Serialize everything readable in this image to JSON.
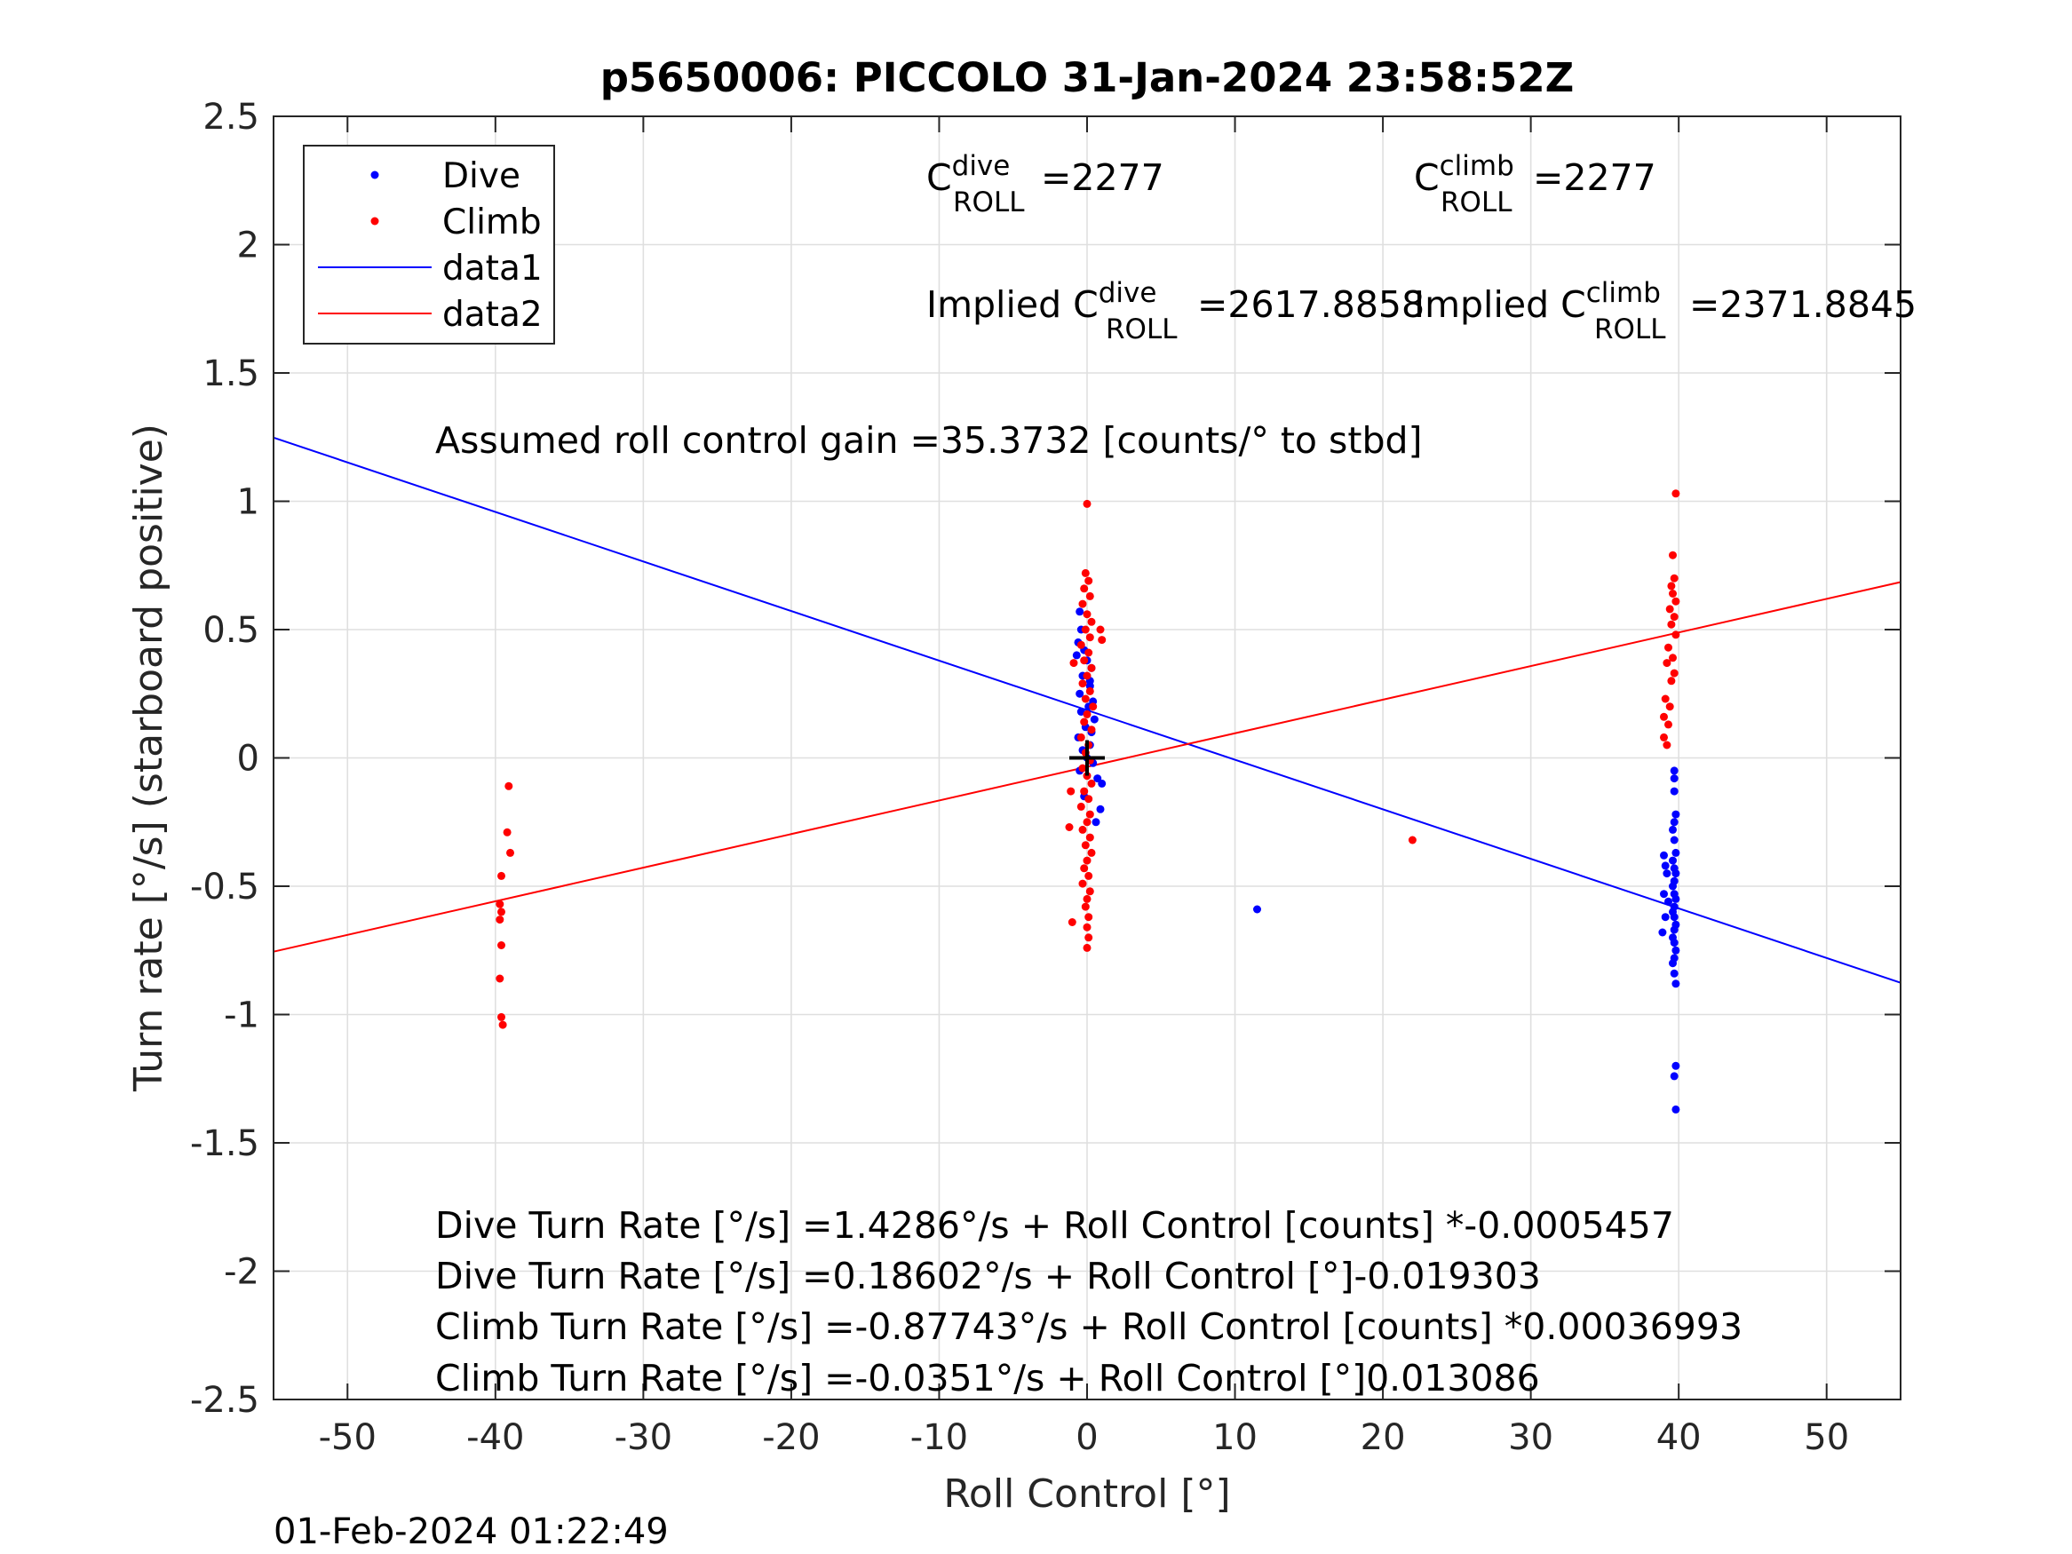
{
  "chart_data": {
    "type": "scatter",
    "title": "p5650006: PICCOLO 31-Jan-2024 23:58:52Z",
    "xlabel": "Roll Control [°]",
    "ylabel": "Turn rate [°/s] (starboard positive)",
    "xlim": [
      -55,
      55
    ],
    "ylim": [
      -2.5,
      2.5
    ],
    "xticks": [
      -50,
      -40,
      -30,
      -20,
      -10,
      0,
      10,
      20,
      30,
      40,
      50
    ],
    "yticks": [
      -2.5,
      -2,
      -1.5,
      -1,
      -0.5,
      0,
      0.5,
      1,
      1.5,
      2,
      2.5
    ],
    "xtick_labels": [
      "-50",
      "-40",
      "-30",
      "-20",
      "-10",
      "0",
      "10",
      "20",
      "30",
      "40",
      "50"
    ],
    "ytick_labels": [
      "-2.5",
      "-2",
      "-1.5",
      "-1",
      "-0.5",
      "0",
      "0.5",
      "1",
      "1.5",
      "2",
      "2.5"
    ],
    "grid": true,
    "legend_position": "top-left",
    "legend": [
      {
        "label": "Dive",
        "kind": "marker",
        "color": "#0000ff"
      },
      {
        "label": "Climb",
        "kind": "marker",
        "color": "#ff0000"
      },
      {
        "label": "data1",
        "kind": "line",
        "color": "#0000ff"
      },
      {
        "label": "data2",
        "kind": "line",
        "color": "#ff0000"
      }
    ],
    "series": [
      {
        "name": "Dive",
        "kind": "scatter",
        "color": "#0000ff",
        "points": [
          [
            -0.5,
            0.57
          ],
          [
            -0.4,
            0.5
          ],
          [
            -0.6,
            0.45
          ],
          [
            -0.2,
            0.42
          ],
          [
            0.0,
            0.38
          ],
          [
            0.3,
            0.35
          ],
          [
            -0.3,
            0.32
          ],
          [
            0.2,
            0.28
          ],
          [
            -0.5,
            0.25
          ],
          [
            0.4,
            0.22
          ],
          [
            0.1,
            0.2
          ],
          [
            -0.4,
            0.18
          ],
          [
            0.5,
            0.15
          ],
          [
            -0.1,
            0.12
          ],
          [
            0.3,
            0.1
          ],
          [
            -0.6,
            0.08
          ],
          [
            0.2,
            0.05
          ],
          [
            -0.3,
            0.03
          ],
          [
            0.0,
            0.0
          ],
          [
            0.4,
            -0.02
          ],
          [
            -0.5,
            -0.05
          ],
          [
            0.7,
            -0.08
          ],
          [
            1.0,
            -0.1
          ],
          [
            0.9,
            -0.2
          ],
          [
            0.6,
            -0.25
          ],
          [
            -0.2,
            -0.15
          ],
          [
            0.2,
            0.3
          ],
          [
            -0.7,
            0.4
          ],
          [
            11.5,
            -0.59
          ],
          [
            39.7,
            -0.05
          ],
          [
            39.7,
            -0.08
          ],
          [
            39.7,
            -0.13
          ],
          [
            39.8,
            -0.22
          ],
          [
            39.7,
            -0.25
          ],
          [
            39.6,
            -0.28
          ],
          [
            39.7,
            -0.32
          ],
          [
            39.8,
            -0.37
          ],
          [
            39.6,
            -0.4
          ],
          [
            39.7,
            -0.43
          ],
          [
            39.8,
            -0.45
          ],
          [
            39.7,
            -0.48
          ],
          [
            39.6,
            -0.5
          ],
          [
            39.7,
            -0.53
          ],
          [
            39.8,
            -0.55
          ],
          [
            39.7,
            -0.58
          ],
          [
            39.6,
            -0.6
          ],
          [
            39.7,
            -0.62
          ],
          [
            39.8,
            -0.65
          ],
          [
            39.7,
            -0.67
          ],
          [
            39.6,
            -0.7
          ],
          [
            39.7,
            -0.72
          ],
          [
            39.8,
            -0.75
          ],
          [
            39.7,
            -0.78
          ],
          [
            39.6,
            -0.8
          ],
          [
            39.7,
            -0.84
          ],
          [
            39.8,
            -0.88
          ],
          [
            39.0,
            -0.38
          ],
          [
            39.1,
            -0.42
          ],
          [
            39.2,
            -0.45
          ],
          [
            39.0,
            -0.53
          ],
          [
            39.3,
            -0.56
          ],
          [
            39.1,
            -0.62
          ],
          [
            38.9,
            -0.68
          ],
          [
            39.8,
            -1.2
          ],
          [
            39.7,
            -1.24
          ],
          [
            39.8,
            -1.37
          ]
        ]
      },
      {
        "name": "Climb",
        "kind": "scatter",
        "color": "#ff0000",
        "points": [
          [
            -39.1,
            -0.11
          ],
          [
            -39.2,
            -0.29
          ],
          [
            -39.0,
            -0.37
          ],
          [
            -39.6,
            -0.46
          ],
          [
            -39.7,
            -0.57
          ],
          [
            -39.6,
            -0.6
          ],
          [
            -39.7,
            -0.63
          ],
          [
            -39.6,
            -0.73
          ],
          [
            -39.7,
            -0.86
          ],
          [
            -39.6,
            -1.01
          ],
          [
            -39.5,
            -1.04
          ],
          [
            0.0,
            0.99
          ],
          [
            -0.1,
            0.72
          ],
          [
            0.1,
            0.69
          ],
          [
            -0.2,
            0.66
          ],
          [
            0.2,
            0.63
          ],
          [
            -0.3,
            0.6
          ],
          [
            0.0,
            0.56
          ],
          [
            0.3,
            0.53
          ],
          [
            -0.1,
            0.5
          ],
          [
            0.2,
            0.47
          ],
          [
            -0.4,
            0.44
          ],
          [
            0.1,
            0.41
          ],
          [
            -0.2,
            0.38
          ],
          [
            0.3,
            0.35
          ],
          [
            0.0,
            0.32
          ],
          [
            -0.3,
            0.29
          ],
          [
            0.2,
            0.26
          ],
          [
            -0.1,
            0.23
          ],
          [
            0.4,
            0.2
          ],
          [
            0.0,
            0.17
          ],
          [
            -0.2,
            0.14
          ],
          [
            0.3,
            0.11
          ],
          [
            -0.4,
            0.08
          ],
          [
            0.1,
            0.05
          ],
          [
            -0.1,
            0.02
          ],
          [
            0.2,
            -0.01
          ],
          [
            -0.3,
            -0.04
          ],
          [
            0.0,
            -0.07
          ],
          [
            0.3,
            -0.1
          ],
          [
            -0.2,
            -0.13
          ],
          [
            0.1,
            -0.16
          ],
          [
            -0.4,
            -0.19
          ],
          [
            0.2,
            -0.22
          ],
          [
            0.0,
            -0.25
          ],
          [
            -0.3,
            -0.28
          ],
          [
            0.2,
            -0.31
          ],
          [
            -0.1,
            -0.34
          ],
          [
            0.3,
            -0.37
          ],
          [
            0.0,
            -0.4
          ],
          [
            -0.2,
            -0.43
          ],
          [
            0.1,
            -0.46
          ],
          [
            -0.3,
            -0.49
          ],
          [
            0.2,
            -0.52
          ],
          [
            0.0,
            -0.55
          ],
          [
            -0.1,
            -0.58
          ],
          [
            0.1,
            -0.62
          ],
          [
            0.0,
            -0.66
          ],
          [
            0.1,
            -0.7
          ],
          [
            0.0,
            -0.74
          ],
          [
            -1.0,
            -0.64
          ],
          [
            -1.2,
            -0.27
          ],
          [
            -1.1,
            -0.13
          ],
          [
            1.0,
            0.46
          ],
          [
            0.9,
            0.5
          ],
          [
            -0.9,
            0.37
          ],
          [
            22.0,
            -0.32
          ],
          [
            39.8,
            1.03
          ],
          [
            39.6,
            0.79
          ],
          [
            39.7,
            0.7
          ],
          [
            39.5,
            0.67
          ],
          [
            39.6,
            0.64
          ],
          [
            39.8,
            0.61
          ],
          [
            39.4,
            0.58
          ],
          [
            39.7,
            0.55
          ],
          [
            39.5,
            0.52
          ],
          [
            39.8,
            0.48
          ],
          [
            39.3,
            0.43
          ],
          [
            39.6,
            0.39
          ],
          [
            39.2,
            0.37
          ],
          [
            39.7,
            0.33
          ],
          [
            39.5,
            0.3
          ],
          [
            39.1,
            0.23
          ],
          [
            39.4,
            0.2
          ],
          [
            39.0,
            0.16
          ],
          [
            39.3,
            0.13
          ],
          [
            39.0,
            0.08
          ],
          [
            39.2,
            0.05
          ]
        ]
      },
      {
        "name": "data1",
        "kind": "line",
        "color": "#0000ff",
        "points": [
          [
            -55,
            1.248
          ],
          [
            55,
            -0.876
          ]
        ]
      },
      {
        "name": "data2",
        "kind": "line",
        "color": "#ff0000",
        "points": [
          [
            -55,
            -0.755
          ],
          [
            55,
            0.685
          ]
        ]
      }
    ],
    "origin_marker": {
      "x": 0,
      "y": 0,
      "color": "#000000"
    }
  },
  "annotations": {
    "c_dive": {
      "base": "C",
      "sup": "dive",
      "sub": "ROLL",
      "value": "=2277"
    },
    "c_climb": {
      "base": "C",
      "sup": "climb",
      "sub": "ROLL",
      "value": "=2277"
    },
    "implied_dive": {
      "prefix": "Implied C",
      "sup": "dive",
      "sub": "ROLL",
      "value": "=2617.8858"
    },
    "implied_climb": {
      "prefix": "Implied C",
      "sup": "climb",
      "sub": "ROLL",
      "value": "=2371.8845"
    },
    "gain": "Assumed roll control gain =35.3732 [counts/° to stbd]",
    "eq_dive_counts": "Dive Turn Rate [°/s] =1.4286°/s + Roll Control [counts] *-0.0005457",
    "eq_dive_deg": "Dive Turn Rate [°/s] =0.18602°/s + Roll Control [°]-0.019303",
    "eq_climb_counts": "Climb Turn Rate [°/s] =-0.87743°/s + Roll Control [counts] *0.00036993",
    "eq_climb_deg": "Climb Turn Rate [°/s] =-0.0351°/s + Roll Control [°]0.013086"
  },
  "footer": {
    "timestamp": "01-Feb-2024 01:22:49"
  }
}
